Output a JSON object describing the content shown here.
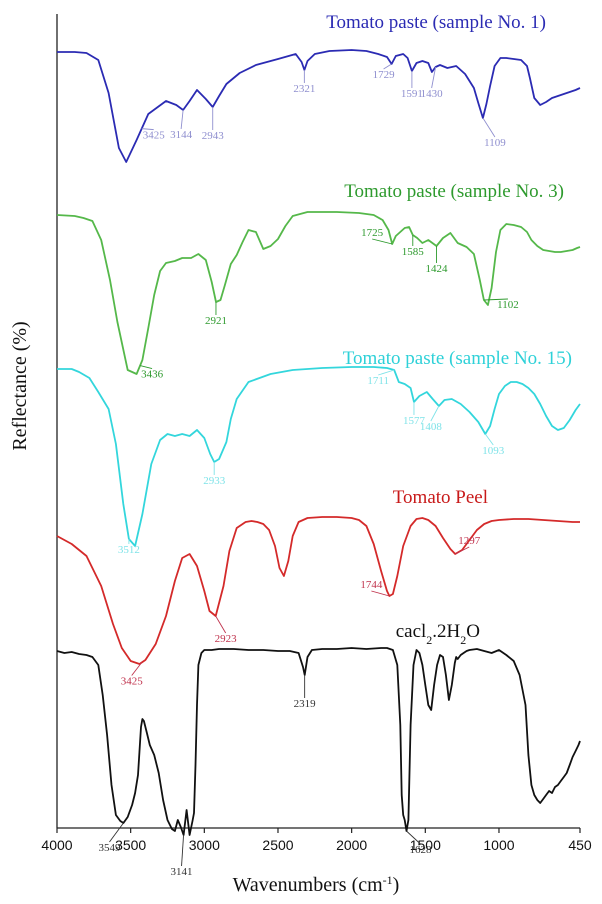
{
  "chart_data": {
    "type": "line",
    "title": "",
    "xlabel": "Wavenumbers (cm",
    "xlabel_sup": "-1",
    "xlabel_end": ")",
    "ylabel": "Reflectance (%)",
    "x_reversed": true,
    "xlim": [
      4000,
      450
    ],
    "x_ticks": [
      4000,
      3500,
      3000,
      2500,
      2000,
      1500,
      1000,
      450
    ],
    "x_tick_labels": [
      "4000",
      "3500",
      "3000",
      "2500",
      "2000",
      "1500",
      "1000",
      "450"
    ],
    "grid": false,
    "legend": "none",
    "series": [
      {
        "name": "Tomato paste (sample No. 1)",
        "color": "#2b2bb3",
        "label_color": "#2b2bb3",
        "peak_color": "#8f8fcf",
        "x": [
          4000,
          3880,
          3800,
          3720,
          3650,
          3580,
          3530,
          3460,
          3380,
          3260,
          3190,
          3144,
          3100,
          3050,
          2990,
          2943,
          2900,
          2850,
          2760,
          2650,
          2500,
          2380,
          2340,
          2321,
          2300,
          2250,
          2150,
          2000,
          1900,
          1820,
          1760,
          1729,
          1700,
          1650,
          1620,
          1591,
          1560,
          1520,
          1480,
          1455,
          1430,
          1400,
          1350,
          1290,
          1230,
          1170,
          1140,
          1109,
          1085,
          1060,
          1030,
          990,
          950,
          900,
          850,
          810,
          790,
          760,
          720,
          680,
          640,
          600,
          560,
          520,
          480,
          450
        ],
        "y": [
          4,
          4,
          5,
          12,
          45,
          100,
          114,
          92,
          66,
          53,
          57,
          62,
          53,
          42,
          51,
          59,
          48,
          36,
          25,
          17,
          11,
          6,
          14,
          22,
          13,
          6,
          3,
          2,
          3,
          6,
          9,
          16,
          8,
          6,
          10,
          23,
          15,
          13,
          15,
          24,
          19,
          17,
          20,
          18,
          26,
          40,
          55,
          70,
          56,
          38,
          18,
          10,
          10,
          11,
          12,
          18,
          30,
          50,
          57,
          54,
          50,
          48,
          46,
          44,
          42,
          40
        ],
        "peaks": [
          {
            "x": 3425,
            "label": "3425"
          },
          {
            "x": 3144,
            "label": "3144"
          },
          {
            "x": 2943,
            "label": "2943"
          },
          {
            "x": 2321,
            "label": "2321"
          },
          {
            "x": 1729,
            "label": "1729"
          },
          {
            "x": 1591,
            "label": "1591"
          },
          {
            "x": 1430,
            "label": "1430"
          },
          {
            "x": 1109,
            "label": "1109"
          }
        ]
      },
      {
        "name": "Tomato paste (sample No. 3)",
        "color": "#55b84a",
        "label_color": "#2e9a2e",
        "peak_color": "#2e9a2e",
        "x": [
          4000,
          3880,
          3820,
          3760,
          3700,
          3640,
          3590,
          3520,
          3460,
          3420,
          3380,
          3340,
          3300,
          3260,
          3200,
          3150,
          3090,
          3040,
          2990,
          2950,
          2921,
          2890,
          2860,
          2820,
          2780,
          2740,
          2700,
          2650,
          2600,
          2550,
          2500,
          2450,
          2400,
          2300,
          2100,
          1950,
          1850,
          1790,
          1750,
          1725,
          1700,
          1640,
          1610,
          1585,
          1555,
          1520,
          1480,
          1424,
          1380,
          1330,
          1280,
          1220,
          1170,
          1130,
          1102,
          1075,
          1050,
          1020,
          990,
          950,
          900,
          850,
          810,
          780,
          740,
          700,
          660,
          620,
          580,
          540,
          500,
          470,
          450
        ],
        "y": [
          5,
          6,
          8,
          11,
          30,
          70,
          112,
          160,
          164,
          150,
          118,
          85,
          61,
          53,
          51,
          48,
          48,
          44,
          50,
          72,
          92,
          90,
          75,
          54,
          45,
          32,
          20,
          22,
          39,
          36,
          29,
          16,
          6,
          2,
          2,
          3,
          5,
          10,
          20,
          34,
          26,
          18,
          17,
          25,
          28,
          33,
          30,
          36,
          28,
          23,
          33,
          37,
          44,
          70,
          90,
          95,
          78,
          42,
          20,
          14,
          15,
          17,
          22,
          30,
          36,
          40,
          41,
          42,
          42,
          41,
          40,
          38,
          37
        ],
        "peaks": [
          {
            "x": 3436,
            "label": "3436"
          },
          {
            "x": 2921,
            "label": "2921"
          },
          {
            "x": 1725,
            "label": "1725"
          },
          {
            "x": 1585,
            "label": "1585"
          },
          {
            "x": 1424,
            "label": "1424"
          },
          {
            "x": 1102,
            "label": "1102"
          }
        ]
      },
      {
        "name": "Tomato paste (sample No. 15)",
        "color": "#33d6dc",
        "label_color": "#2ed1d8",
        "peak_color": "#7fe3e8",
        "x": [
          4000,
          3900,
          3850,
          3780,
          3720,
          3650,
          3600,
          3550,
          3512,
          3470,
          3420,
          3360,
          3300,
          3250,
          3200,
          3150,
          3100,
          3050,
          3000,
          2960,
          2933,
          2900,
          2850,
          2820,
          2780,
          2700,
          2550,
          2400,
          2200,
          2000,
          1850,
          1760,
          1711,
          1680,
          1640,
          1600,
          1577,
          1540,
          1490,
          1450,
          1408,
          1370,
          1320,
          1260,
          1200,
          1140,
          1093,
          1060,
          1030,
          1000,
          960,
          920,
          880,
          840,
          800,
          760,
          720,
          680,
          640,
          600,
          560,
          520,
          480,
          450
        ],
        "y": [
          5,
          5,
          8,
          14,
          28,
          45,
          80,
          140,
          175,
          182,
          150,
          100,
          76,
          70,
          72,
          70,
          72,
          66,
          74,
          90,
          98,
          95,
          78,
          55,
          35,
          18,
          10,
          6,
          4,
          3,
          3,
          4,
          6,
          18,
          20,
          24,
          38,
          32,
          28,
          35,
          42,
          36,
          35,
          40,
          48,
          58,
          70,
          62,
          45,
          30,
          22,
          18,
          18,
          20,
          24,
          30,
          40,
          52,
          62,
          66,
          64,
          56,
          46,
          40
        ],
        "peaks": [
          {
            "x": 3512,
            "label": "3512"
          },
          {
            "x": 2933,
            "label": "2933"
          },
          {
            "x": 1711,
            "label": "1711"
          },
          {
            "x": 1577,
            "label": "1577"
          },
          {
            "x": 1408,
            "label": "1408"
          },
          {
            "x": 1093,
            "label": "1093"
          }
        ]
      },
      {
        "name": "Tomato Peel",
        "color": "#d42a2a",
        "label_color": "#c81a1a",
        "peak_color": "#c0334d",
        "x": [
          4000,
          3900,
          3800,
          3700,
          3620,
          3560,
          3500,
          3440,
          3400,
          3330,
          3260,
          3200,
          3150,
          3100,
          3050,
          3000,
          2965,
          2923,
          2870,
          2830,
          2780,
          2720,
          2680,
          2640,
          2600,
          2560,
          2520,
          2490,
          2460,
          2430,
          2400,
          2360,
          2300,
          2200,
          2100,
          2000,
          1950,
          1900,
          1850,
          1800,
          1760,
          1744,
          1720,
          1690,
          1650,
          1600,
          1560,
          1520,
          1480,
          1430,
          1380,
          1330,
          1297,
          1250,
          1200,
          1150,
          1100,
          1050,
          1000,
          900,
          800,
          700,
          600,
          500,
          450
        ],
        "y": [
          20,
          28,
          40,
          70,
          108,
          132,
          145,
          148,
          144,
          128,
          100,
          65,
          42,
          38,
          50,
          75,
          95,
          100,
          70,
          35,
          12,
          6,
          5,
          6,
          8,
          14,
          30,
          52,
          60,
          45,
          20,
          6,
          2,
          1,
          1,
          2,
          4,
          10,
          28,
          55,
          75,
          80,
          78,
          60,
          30,
          10,
          3,
          2,
          4,
          10,
          22,
          33,
          38,
          34,
          24,
          14,
          8,
          5,
          4,
          3,
          3,
          4,
          5,
          6,
          6
        ],
        "peaks": [
          {
            "x": 3425,
            "label": "3425"
          },
          {
            "x": 2923,
            "label": "2923"
          },
          {
            "x": 1744,
            "label": "1744"
          },
          {
            "x": 1297,
            "label": "1297"
          }
        ]
      },
      {
        "name": "cacl",
        "name_sub1": "2",
        "name_mid": ".2H",
        "name_sub2": "2",
        "name_end": "O",
        "color": "#111111",
        "label_color": "#111111",
        "peak_color": "#333333",
        "x": [
          4000,
          3950,
          3900,
          3850,
          3800,
          3760,
          3720,
          3690,
          3660,
          3630,
          3600,
          3570,
          3549,
          3520,
          3490,
          3470,
          3450,
          3430,
          3420,
          3410,
          3390,
          3370,
          3340,
          3310,
          3280,
          3250,
          3220,
          3200,
          3180,
          3160,
          3141,
          3120,
          3100,
          3080,
          3070,
          3060,
          3050,
          3040,
          3020,
          3000,
          2950,
          2900,
          2800,
          2700,
          2600,
          2500,
          2420,
          2360,
          2330,
          2319,
          2300,
          2270,
          2200,
          2100,
          2000,
          1900,
          1800,
          1760,
          1720,
          1690,
          1670,
          1660,
          1650,
          1640,
          1628,
          1615,
          1600,
          1580,
          1560,
          1540,
          1520,
          1500,
          1480,
          1460,
          1440,
          1420,
          1400,
          1380,
          1360,
          1340,
          1320,
          1300,
          1290,
          1280,
          1260,
          1240,
          1220,
          1200,
          1150,
          1100,
          1050,
          1000,
          950,
          900,
          860,
          820,
          800,
          780,
          760,
          740,
          720,
          700,
          680,
          660,
          640,
          620,
          600,
          580,
          560,
          540,
          520,
          500,
          480,
          460,
          450
        ],
        "y": [
          6,
          8,
          7,
          9,
          10,
          12,
          20,
          50,
          90,
          140,
          170,
          176,
          178,
          172,
          160,
          148,
          130,
          82,
          74,
          76,
          88,
          100,
          110,
          128,
          155,
          175,
          184,
          186,
          175,
          182,
          190,
          165,
          190,
          176,
          168,
          120,
          60,
          20,
          8,
          5,
          5,
          4,
          4,
          5,
          5,
          6,
          6,
          8,
          22,
          30,
          12,
          5,
          4,
          4,
          3,
          4,
          3,
          3,
          5,
          20,
          80,
          150,
          170,
          175,
          186,
          175,
          80,
          20,
          5,
          8,
          20,
          40,
          60,
          65,
          40,
          20,
          10,
          12,
          30,
          55,
          40,
          18,
          12,
          14,
          10,
          8,
          6,
          5,
          4,
          6,
          8,
          5,
          10,
          16,
          30,
          60,
          110,
          140,
          150,
          155,
          158,
          154,
          150,
          146,
          148,
          142,
          140,
          136,
          132,
          128,
          120,
          112,
          106,
          100,
          96
        ],
        "peaks": [
          {
            "x": 3549,
            "label": "3549"
          },
          {
            "x": 3141,
            "label": "3141"
          },
          {
            "x": 2319,
            "label": "2319"
          },
          {
            "x": 1628,
            "label": "1628"
          }
        ]
      }
    ]
  }
}
